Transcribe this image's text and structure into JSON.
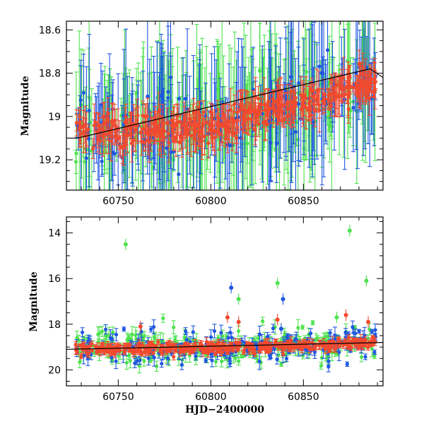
{
  "colors": {
    "blue": "#1f57e0",
    "green": "#4fe24f",
    "red": "#f24a2e",
    "axis": "#000000"
  },
  "chart_data": [
    {
      "type": "scatter",
      "panel": "top",
      "title": "",
      "xlabel": "",
      "ylabel": "Magnitude",
      "xlim": [
        60722,
        60893
      ],
      "ylim": [
        19.34,
        18.56
      ],
      "y_inverted": true,
      "x_ticks": [
        60750,
        60800,
        60850
      ],
      "x_tick_labels": [
        "60750",
        "60800",
        "60850"
      ],
      "y_ticks": [
        18.6,
        18.8,
        19.0,
        19.2
      ],
      "y_tick_labels": [
        "18.6",
        "18.8",
        "19",
        "19.2"
      ],
      "grid": false,
      "series": [
        {
          "color": "red",
          "description_trend": [
            [
              60728,
              19.05
            ],
            [
              60750,
              19.07
            ],
            [
              60775,
              19.05
            ],
            [
              60800,
              19.05
            ],
            [
              60815,
              18.98
            ],
            [
              60830,
              18.95
            ],
            [
              60850,
              18.92
            ],
            [
              60870,
              18.85
            ],
            [
              60887,
              18.82
            ]
          ]
        },
        {
          "color": "blue"
        },
        {
          "color": "green"
        }
      ],
      "model_line": [
        [
          60722,
          19.1
        ],
        [
          60728,
          19.1
        ],
        [
          60886,
          18.78
        ],
        [
          60893,
          18.82
        ]
      ]
    },
    {
      "type": "scatter",
      "panel": "bottom",
      "title": "",
      "xlabel": "HJD−2400000",
      "ylabel": "Magnitude",
      "xlim": [
        60722,
        60893
      ],
      "ylim": [
        20.7,
        13.3
      ],
      "y_inverted": true,
      "x_ticks": [
        60750,
        60800,
        60850
      ],
      "x_tick_labels": [
        "60750",
        "60800",
        "60850"
      ],
      "y_ticks": [
        14,
        16,
        18,
        20
      ],
      "y_tick_labels": [
        "14",
        "16",
        "18",
        "20"
      ],
      "grid": false,
      "series": [
        {
          "color": "red"
        },
        {
          "color": "blue"
        },
        {
          "color": "green"
        }
      ],
      "outliers": [
        {
          "color": "green",
          "x": 60754,
          "y": 14.5
        },
        {
          "color": "green",
          "x": 60875,
          "y": 13.9
        },
        {
          "color": "green",
          "x": 60884,
          "y": 16.1
        },
        {
          "color": "green",
          "x": 60836,
          "y": 16.2
        },
        {
          "color": "green",
          "x": 60815,
          "y": 16.9
        },
        {
          "color": "blue",
          "x": 60811,
          "y": 16.4
        },
        {
          "color": "blue",
          "x": 60839,
          "y": 16.9
        },
        {
          "color": "red",
          "x": 60762,
          "y": 18.1
        },
        {
          "color": "red",
          "x": 60815,
          "y": 17.9
        },
        {
          "color": "red",
          "x": 60809,
          "y": 17.7
        },
        {
          "color": "red",
          "x": 60836,
          "y": 17.8
        },
        {
          "color": "red",
          "x": 60873,
          "y": 17.6
        },
        {
          "color": "red",
          "x": 60885,
          "y": 17.9
        },
        {
          "color": "blue",
          "x": 60838,
          "y": 18.2
        },
        {
          "color": "green",
          "x": 60868,
          "y": 17.7
        }
      ],
      "model_line": [
        [
          60722,
          19.1
        ],
        [
          60893,
          18.8
        ]
      ]
    }
  ]
}
